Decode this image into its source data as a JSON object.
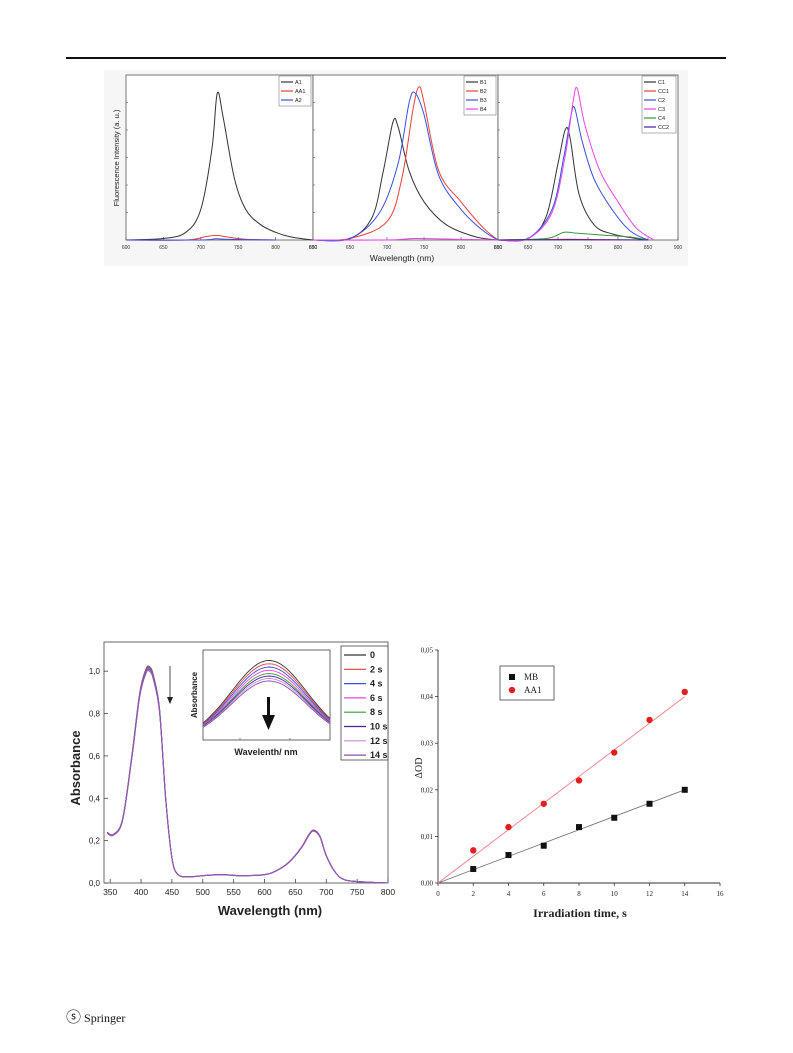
{
  "footer": {
    "publisher_mark": "ⓢ",
    "publisher": "Springer"
  },
  "chart_data": [
    {
      "type": "line",
      "title": "",
      "ylabel": "Fluorescence Intensity (a. u.)",
      "xlabel": "Wavelength (nm)",
      "xlim": [
        600,
        900
      ],
      "panels": [
        {
          "xlim": [
            600,
            850
          ],
          "ylim": [
            0,
            1
          ],
          "xticks": [
            "600",
            "650",
            "700",
            "750",
            "800",
            "850"
          ],
          "legend": "top-right",
          "series": [
            {
              "name": "A1",
              "color": "#333333",
              "x": [
                600,
                650,
                680,
                700,
                715,
                722,
                730,
                745,
                760,
                780,
                800,
                820,
                850
              ],
              "y": [
                0,
                0.01,
                0.05,
                0.2,
                0.6,
                0.96,
                0.8,
                0.4,
                0.2,
                0.1,
                0.05,
                0.02,
                0
              ]
            },
            {
              "name": "AA1",
              "color": "#e8413a",
              "x": [
                600,
                680,
                705,
                720,
                735,
                760,
                800
              ],
              "y": [
                0,
                0,
                0.02,
                0.03,
                0.02,
                0.005,
                0
              ]
            },
            {
              "name": "A2",
              "color": "#3a4fe0",
              "x": [
                600,
                700,
                720,
                740,
                800
              ],
              "y": [
                0,
                0,
                0.008,
                0.004,
                0
              ]
            }
          ]
        },
        {
          "xlim": [
            600,
            850
          ],
          "ylim": [
            0,
            1
          ],
          "xticks": [
            "600",
            "650",
            "700",
            "750",
            "800",
            "850"
          ],
          "legend": "top-right",
          "series": [
            {
              "name": "B1",
              "color": "#333333",
              "x": [
                600,
                650,
                680,
                695,
                708,
                715,
                730,
                750,
                780,
                820,
                850
              ],
              "y": [
                0,
                0.01,
                0.15,
                0.45,
                0.77,
                0.74,
                0.45,
                0.25,
                0.1,
                0.02,
                0
              ]
            },
            {
              "name": "B2",
              "color": "#e8413a",
              "x": [
                600,
                650,
                700,
                720,
                735,
                743,
                750,
                770,
                800,
                830,
                850
              ],
              "y": [
                0,
                0.01,
                0.12,
                0.4,
                0.85,
                1.0,
                0.9,
                0.45,
                0.25,
                0.08,
                0
              ]
            },
            {
              "name": "B3",
              "color": "#3a4fe0",
              "x": [
                600,
                650,
                690,
                715,
                730,
                738,
                750,
                770,
                800,
                830,
                850
              ],
              "y": [
                0,
                0.01,
                0.18,
                0.5,
                0.9,
                0.96,
                0.82,
                0.42,
                0.2,
                0.06,
                0
              ]
            },
            {
              "name": "B4",
              "color": "#e845e8",
              "x": [
                600,
                700,
                740,
                800,
                850
              ],
              "y": [
                0,
                0,
                0.01,
                0.004,
                0
              ]
            }
          ]
        },
        {
          "xlim": [
            600,
            900
          ],
          "ylim": [
            0,
            1
          ],
          "xticks": [
            "600",
            "650",
            "700",
            "750",
            "800",
            "850",
            "900"
          ],
          "legend": "top-right",
          "series": [
            {
              "name": "C1",
              "color": "#333333",
              "x": [
                600,
                650,
                680,
                700,
                712,
                720,
                735,
                760,
                790,
                830,
                850
              ],
              "y": [
                0,
                0.01,
                0.15,
                0.5,
                0.72,
                0.67,
                0.3,
                0.1,
                0.04,
                0.01,
                0
              ]
            },
            {
              "name": "CC1",
              "color": "#e8413a",
              "x": [
                600,
                720,
                800
              ],
              "y": [
                0,
                0.005,
                0
              ]
            },
            {
              "name": "C2",
              "color": "#3a4fe0",
              "x": [
                600,
                650,
                690,
                710,
                722,
                728,
                740,
                760,
                790,
                820,
                850
              ],
              "y": [
                0,
                0.01,
                0.2,
                0.55,
                0.82,
                0.86,
                0.65,
                0.4,
                0.2,
                0.06,
                0
              ]
            },
            {
              "name": "C3",
              "color": "#e845e8",
              "x": [
                600,
                650,
                690,
                712,
                725,
                732,
                745,
                770,
                800,
                830,
                860
              ],
              "y": [
                0,
                0.01,
                0.18,
                0.55,
                0.9,
                0.99,
                0.75,
                0.45,
                0.25,
                0.08,
                0
              ]
            },
            {
              "name": "C4",
              "color": "#3a9a3a",
              "x": [
                600,
                680,
                710,
                730,
                780,
                820,
                850
              ],
              "y": [
                0,
                0.01,
                0.05,
                0.045,
                0.03,
                0.02,
                0
              ]
            },
            {
              "name": "CC2",
              "color": "#4a1f9f",
              "x": [
                600,
                700,
                760,
                850
              ],
              "y": [
                0,
                0.002,
                0.002,
                0
              ]
            }
          ]
        }
      ]
    },
    {
      "type": "line",
      "title": "",
      "xlabel": "Wavelength (nm)",
      "ylabel": "Absorbance",
      "xlim": [
        340,
        800
      ],
      "ylim": [
        0,
        1.1
      ],
      "xticks": [
        "350",
        "400",
        "450",
        "500",
        "550",
        "600",
        "650",
        "700",
        "750",
        "800"
      ],
      "yticks": [
        "0,0",
        "0,2",
        "0,4",
        "0,6",
        "0,8",
        "1,0"
      ],
      "legend": "top-right",
      "legend_entries": [
        {
          "name": "0",
          "color": "#333333"
        },
        {
          "name": "2 s",
          "color": "#e8413a"
        },
        {
          "name": "4 s",
          "color": "#3a4fe0"
        },
        {
          "name": "6 s",
          "color": "#e845e8"
        },
        {
          "name": "8 s",
          "color": "#3a9a3a"
        },
        {
          "name": "10 s",
          "color": "#4a1f9f"
        },
        {
          "name": "12 s",
          "color": "#c98ad8"
        },
        {
          "name": "14 s",
          "color": "#8a4fb0"
        }
      ],
      "series": [
        {
          "name": "0",
          "values_x": [
            345,
            355,
            370,
            385,
            398,
            408,
            414,
            420,
            430,
            440,
            450,
            460,
            480,
            500,
            530,
            560,
            600,
            620,
            640,
            660,
            672,
            680,
            690,
            700,
            715,
            730,
            760,
            800
          ],
          "values_y": [
            0.24,
            0.23,
            0.3,
            0.6,
            0.9,
            1.01,
            1.02,
            0.98,
            0.82,
            0.4,
            0.12,
            0.04,
            0.03,
            0.035,
            0.04,
            0.035,
            0.04,
            0.06,
            0.1,
            0.17,
            0.23,
            0.25,
            0.22,
            0.13,
            0.05,
            0.015,
            0.005,
            0
          ]
        }
      ],
      "inset": {
        "xlabel": "Wavelenth/ nm",
        "ylabel": "Absorbance",
        "curve_peaks": [
          0.97,
          0.93,
          0.89,
          0.85,
          0.81,
          0.78,
          0.75,
          0.72
        ]
      }
    },
    {
      "type": "scatter",
      "title": "",
      "xlabel": "Irradiation time, s",
      "ylabel": "ΔOD",
      "xlim": [
        0,
        16
      ],
      "ylim": [
        0,
        0.05
      ],
      "xticks": [
        "0",
        "2",
        "4",
        "6",
        "8",
        "10",
        "12",
        "14",
        "16"
      ],
      "yticks": [
        "0,00",
        "0,01",
        "0,02",
        "0,03",
        "0,04",
        "0,05"
      ],
      "legend": "top-left",
      "series": [
        {
          "name": "MB",
          "color": "#111111",
          "marker": "square",
          "x": [
            2,
            4,
            6,
            8,
            10,
            12,
            14
          ],
          "y": [
            0.003,
            0.006,
            0.008,
            0.012,
            0.014,
            0.017,
            0.02
          ],
          "fit": [
            0,
            0,
            14,
            0.02
          ]
        },
        {
          "name": "AA1",
          "color": "#e01f1f",
          "marker": "circle",
          "x": [
            2,
            4,
            6,
            8,
            10,
            12,
            14
          ],
          "y": [
            0.007,
            0.012,
            0.017,
            0.022,
            0.028,
            0.035,
            0.041
          ],
          "fit": [
            0,
            0,
            14,
            0.04
          ]
        }
      ]
    }
  ]
}
